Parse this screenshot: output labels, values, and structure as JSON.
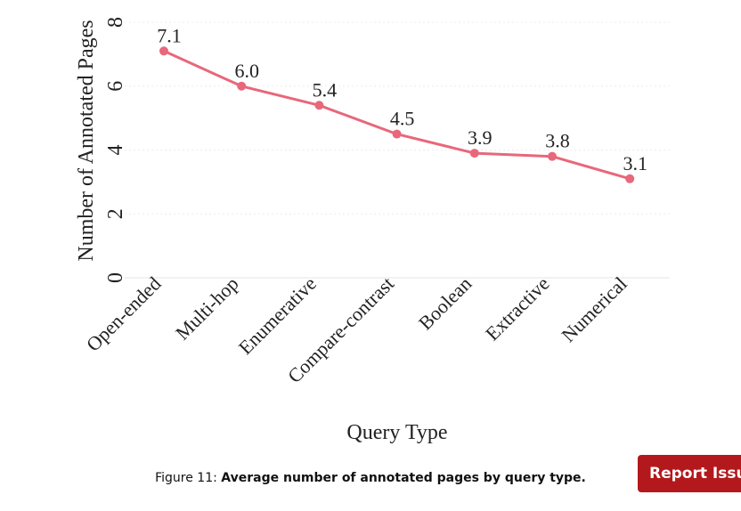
{
  "chart_data": {
    "type": "line",
    "title": "",
    "xlabel": "Query Type",
    "ylabel": "Number of Annotated Pages",
    "categories": [
      "Open-ended",
      "Multi-hop",
      "Enumerative",
      "Compare-contrast",
      "Boolean",
      "Extractive",
      "Numerical"
    ],
    "values": [
      7.1,
      6.0,
      5.4,
      4.5,
      3.9,
      3.8,
      3.1
    ],
    "data_labels": [
      "7.1",
      "6.0",
      "5.4",
      "4.5",
      "3.9",
      "3.8",
      "3.1"
    ],
    "ylim": [
      0,
      8
    ],
    "yticks": [
      0,
      2,
      4,
      6,
      8
    ],
    "grid": true,
    "line_color": "#e8677b"
  },
  "caption": {
    "prefix": "Figure 11:",
    "text": "Average number of annotated pages by query type."
  },
  "report_button": {
    "label": "Report Issue",
    "color": "#b3191c"
  }
}
